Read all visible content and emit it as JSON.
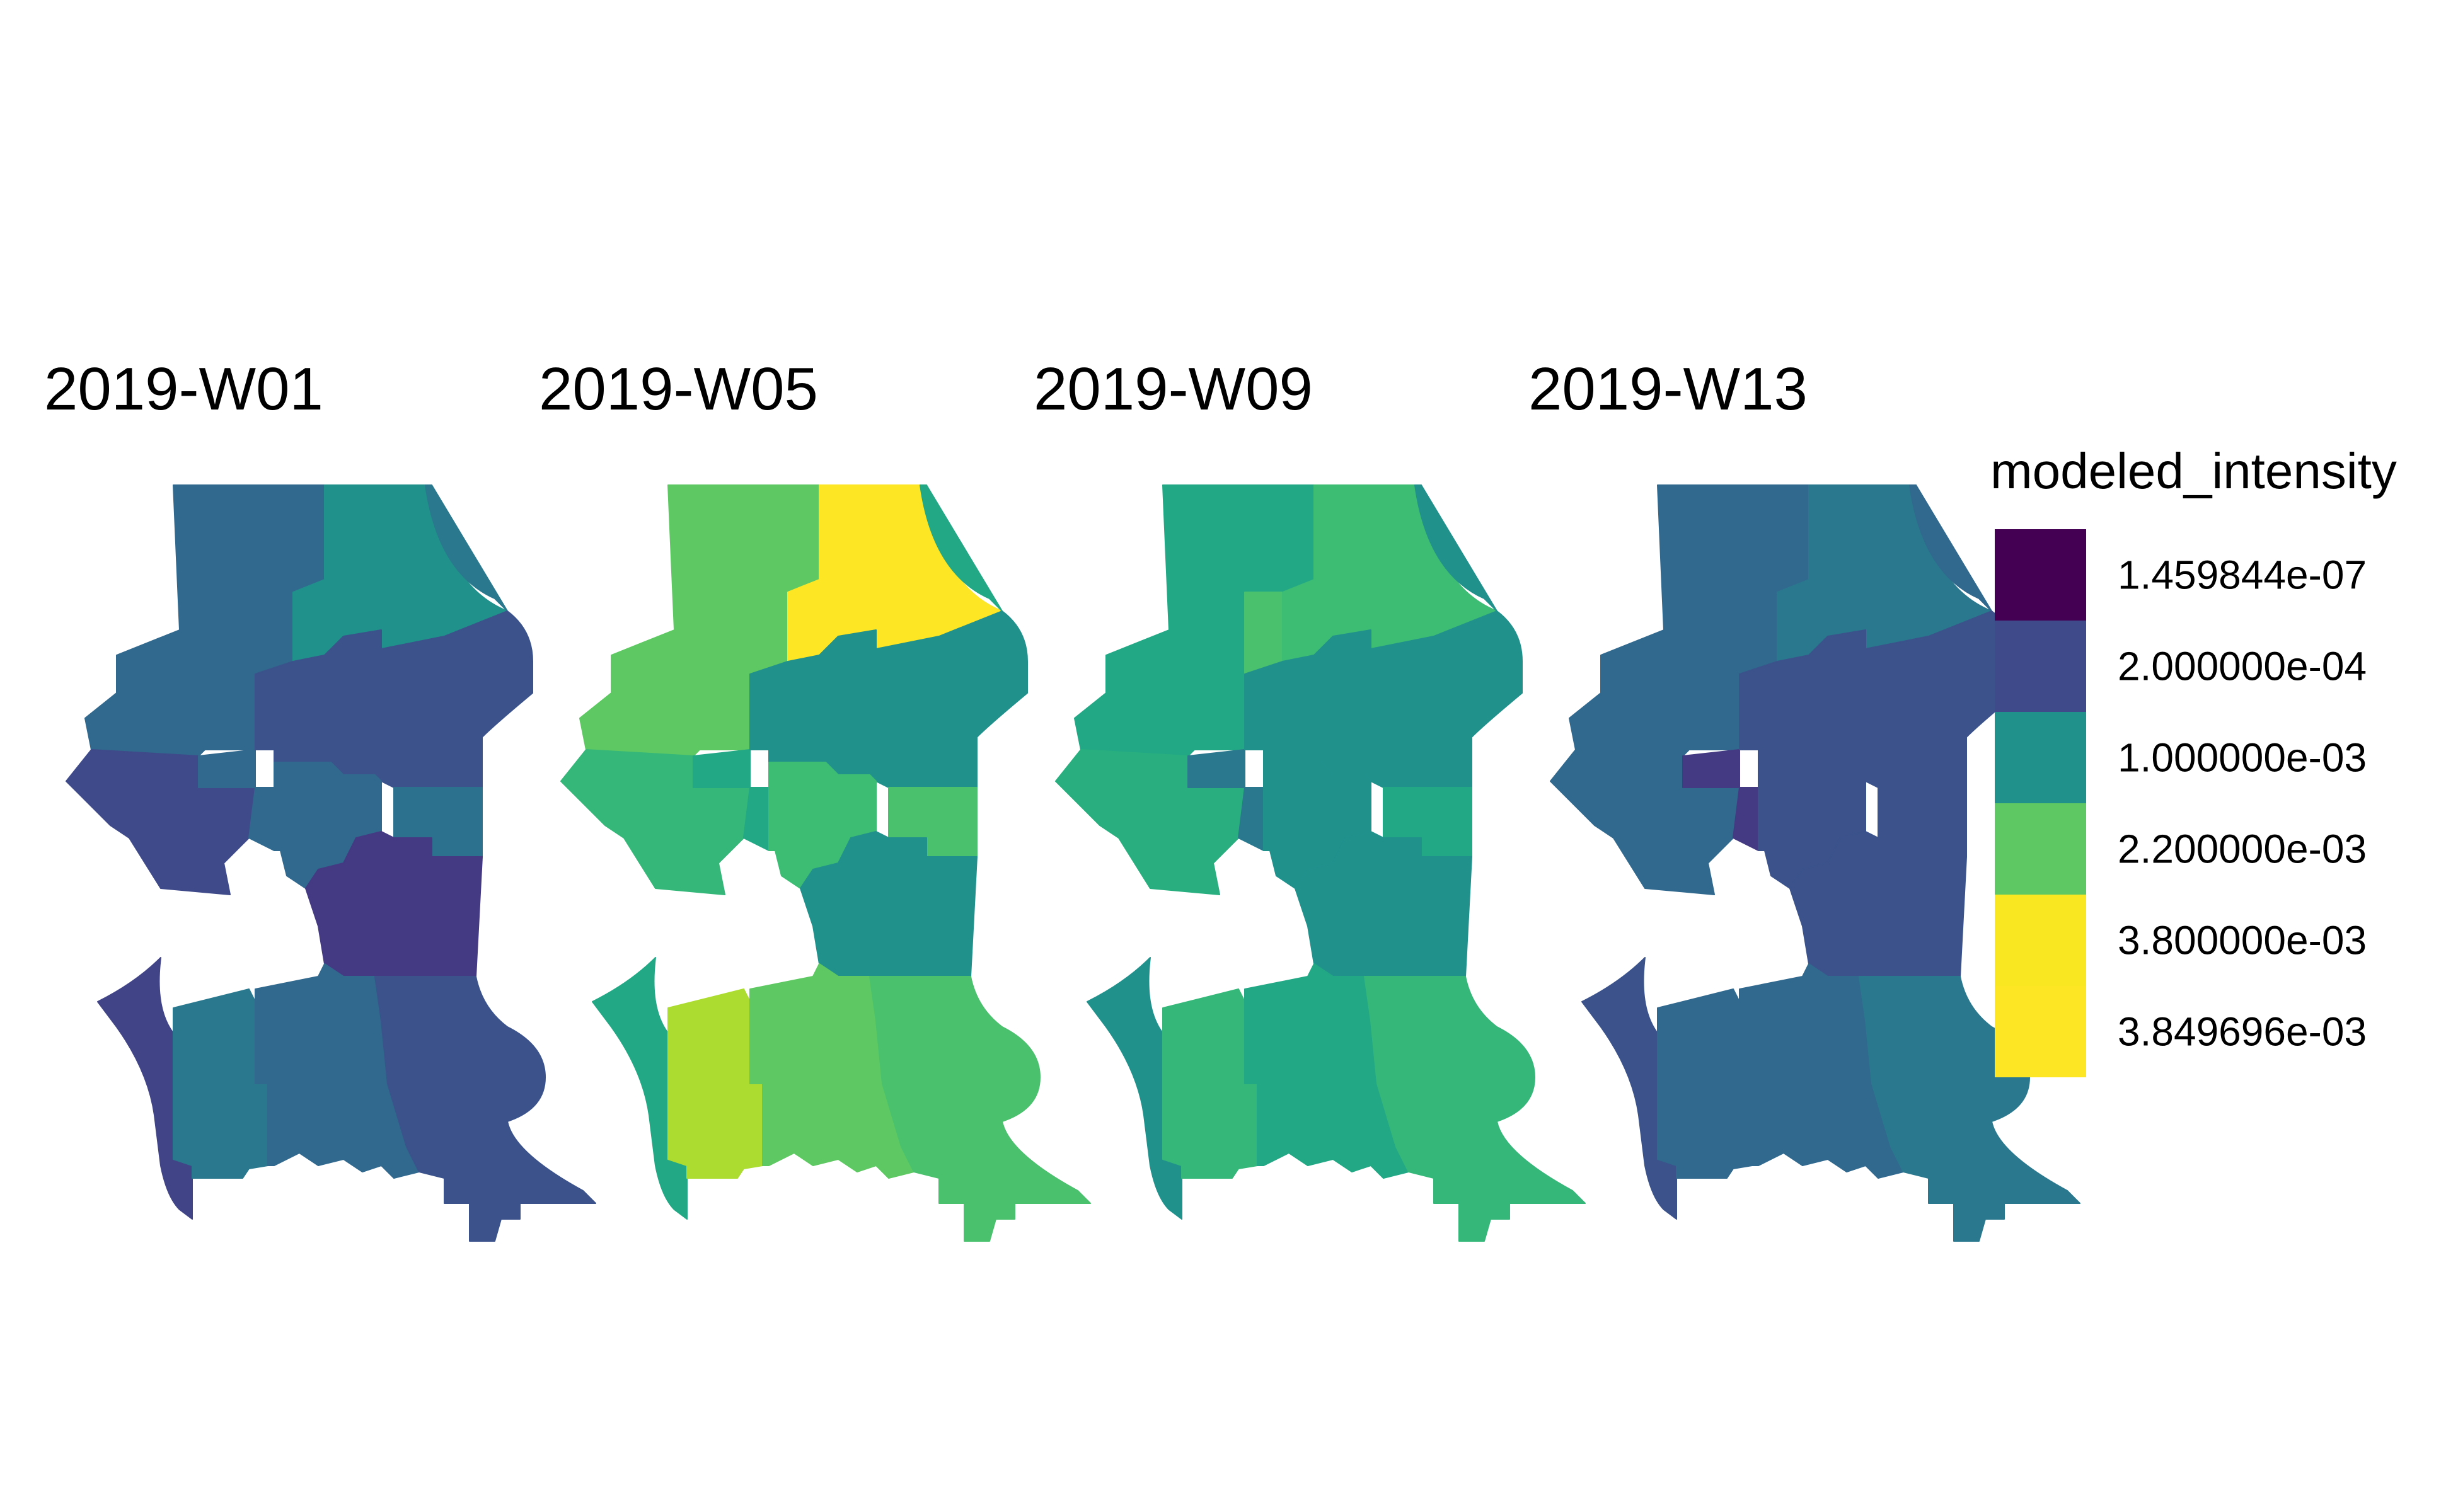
{
  "panels": [
    {
      "title": "2019-W01",
      "regions": {
        "nw": "#31688e",
        "n_mid": "#31688e",
        "ne": "#21918c",
        "ne_coast": "#2a788e",
        "west_pen": "#3e4a89",
        "central_w": "#31688e",
        "central_e": "#3b528b",
        "mid_strip": "#31688e",
        "e_side": "#2c728e",
        "e_block": "#443983",
        "s_west_strip": "#414487",
        "s_col2": "#2a788e",
        "s_col3": "#31688e",
        "s_col4": "#3b528b"
      }
    },
    {
      "title": "2019-W05",
      "regions": {
        "nw": "#5ec962",
        "n_mid": "#5ec962",
        "ne": "#fde725",
        "ne_coast": "#22a884",
        "west_pen": "#35b779",
        "central_w": "#22a884",
        "central_e": "#21918c",
        "mid_strip": "#3dbc74",
        "e_side": "#4ac16d",
        "e_block": "#21918c",
        "s_west_strip": "#22a884",
        "s_col2": "#addc30",
        "s_col3": "#5ec962",
        "s_col4": "#4ac16d"
      }
    },
    {
      "title": "2019-W09",
      "regions": {
        "nw": "#22a884",
        "n_mid": "#4ac16d",
        "ne": "#3dbc74",
        "ne_coast": "#21918c",
        "west_pen": "#29af7f",
        "central_w": "#2a788e",
        "central_e": "#21918c",
        "mid_strip": "#21918c",
        "e_side": "#22a884",
        "e_block": "#21918c",
        "s_west_strip": "#21918c",
        "s_col2": "#35b779",
        "s_col3": "#22a884",
        "s_col4": "#35b779"
      }
    },
    {
      "title": "2019-W13",
      "regions": {
        "nw": "#31688e",
        "n_mid": "#31688e",
        "ne": "#2a788e",
        "ne_coast": "#31688e",
        "west_pen": "#31688e",
        "central_w": "#443983",
        "central_e": "#3b528b",
        "mid_strip": "#3b528b",
        "e_side": "#3b528b",
        "e_block": "#3b528b",
        "s_west_strip": "#3b528b",
        "s_col2": "#31688e",
        "s_col3": "#31688e",
        "s_col4": "#2a788e"
      }
    }
  ],
  "legend": {
    "title": "modeled_intensity",
    "items": [
      {
        "label": "1.459844e-07",
        "color": "#440154"
      },
      {
        "label": "2.000000e-04",
        "color": "#3e4a89"
      },
      {
        "label": "1.000000e-03",
        "color": "#21918c"
      },
      {
        "label": "2.200000e-03",
        "color": "#5ec962"
      },
      {
        "label": "3.800000e-03",
        "color": "#f9e721"
      },
      {
        "label": "3.849696e-03",
        "color": "#fde725"
      }
    ]
  }
}
